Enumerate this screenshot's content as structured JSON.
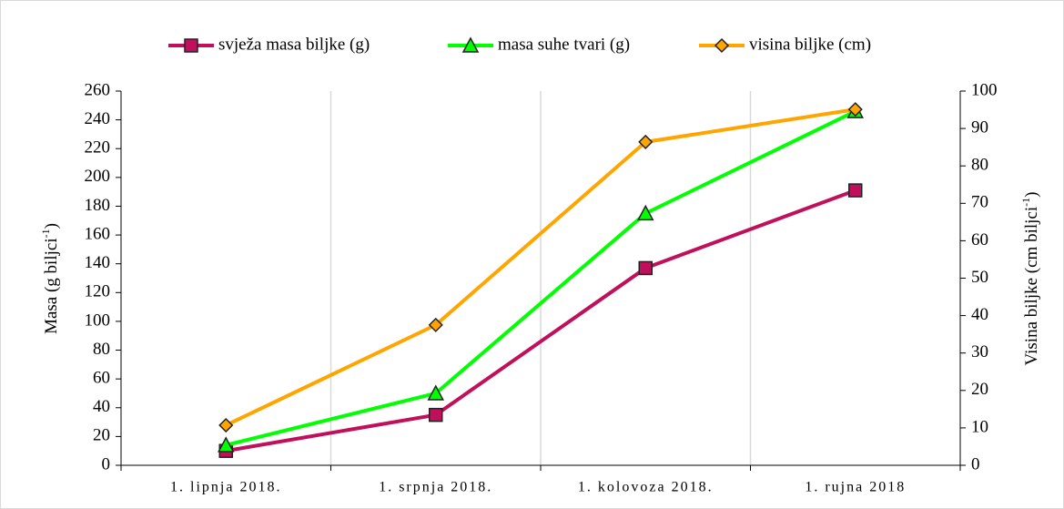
{
  "chart_data": {
    "type": "line",
    "categories": [
      "1. lipnja 2018.",
      "1. srpnja 2018.",
      "1. kolovoza 2018.",
      "1. rujna 2018"
    ],
    "series": [
      {
        "name": "svježa masa biljke (g)",
        "color": "#c0105b",
        "marker": "square",
        "values": [
          10,
          35,
          137,
          191
        ]
      },
      {
        "name": "masa suhe tvari (g)",
        "color": "#00ff00",
        "marker": "triangle",
        "values": [
          14,
          50,
          175,
          246
        ]
      },
      {
        "name": "visina biljke (cm)",
        "color": "#ffa500",
        "marker": "diamond",
        "axis": "y2",
        "values": [
          10.7,
          37.5,
          86.4,
          95.1
        ]
      }
    ],
    "y_label": [
      "Masa (g biljci",
      "-1",
      ")"
    ],
    "y2_label": [
      "Visina biljke (cm biljci",
      "-1",
      ")"
    ],
    "ylim": [
      0,
      260
    ],
    "yticks": [
      0,
      20,
      40,
      60,
      80,
      100,
      120,
      140,
      160,
      180,
      200,
      220,
      240,
      260
    ],
    "y2lim": [
      0,
      100
    ],
    "y2ticks": [
      0,
      10,
      20,
      30,
      40,
      50,
      60,
      70,
      80,
      90,
      100
    ],
    "grid": true,
    "legend": "top"
  }
}
